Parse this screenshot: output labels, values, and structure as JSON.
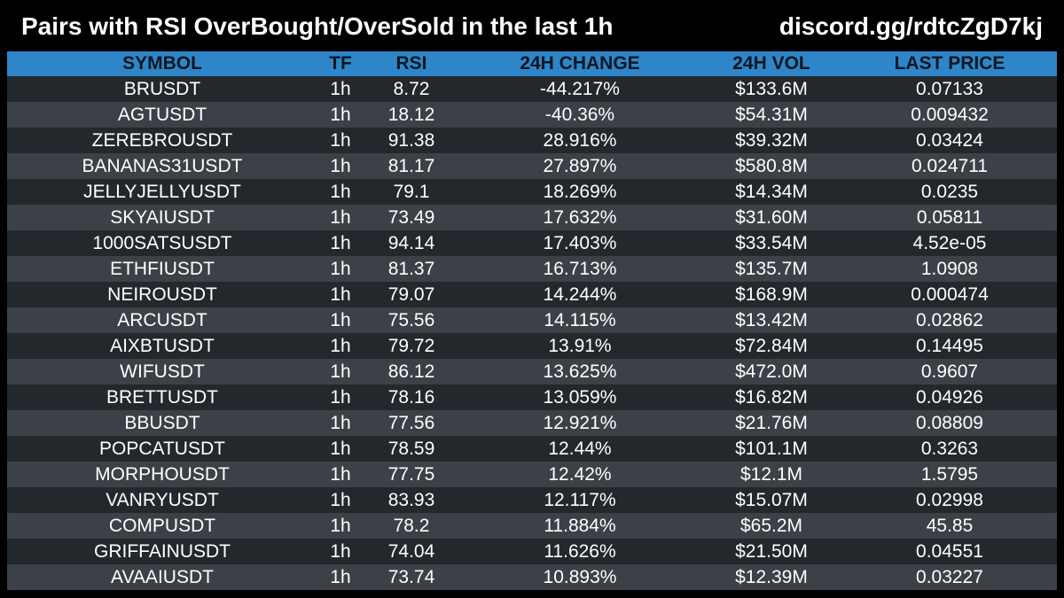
{
  "header": {
    "title": "Pairs with RSI OverBought/OverSold in the last 1h",
    "link": "discord.gg/rdtcZgD7kj"
  },
  "table": {
    "columns": [
      "SYMBOL",
      "TF",
      "RSI",
      "24H CHANGE",
      "24H VOL",
      "LAST PRICE"
    ],
    "rows": [
      [
        "BRUSDT",
        "1h",
        "8.72",
        "-44.217%",
        "$133.6M",
        "0.07133"
      ],
      [
        "AGTUSDT",
        "1h",
        "18.12",
        "-40.36%",
        "$54.31M",
        "0.009432"
      ],
      [
        "ZEREBROUSDT",
        "1h",
        "91.38",
        "28.916%",
        "$39.32M",
        "0.03424"
      ],
      [
        "BANANAS31USDT",
        "1h",
        "81.17",
        "27.897%",
        "$580.8M",
        "0.024711"
      ],
      [
        "JELLYJELLYUSDT",
        "1h",
        "79.1",
        "18.269%",
        "$14.34M",
        "0.0235"
      ],
      [
        "SKYAIUSDT",
        "1h",
        "73.49",
        "17.632%",
        "$31.60M",
        "0.05811"
      ],
      [
        "1000SATSUSDT",
        "1h",
        "94.14",
        "17.403%",
        "$33.54M",
        "4.52e-05"
      ],
      [
        "ETHFIUSDT",
        "1h",
        "81.37",
        "16.713%",
        "$135.7M",
        "1.0908"
      ],
      [
        "NEIROUSDT",
        "1h",
        "79.07",
        "14.244%",
        "$168.9M",
        "0.000474"
      ],
      [
        "ARCUSDT",
        "1h",
        "75.56",
        "14.115%",
        "$13.42M",
        "0.02862"
      ],
      [
        "AIXBTUSDT",
        "1h",
        "79.72",
        "13.91%",
        "$72.84M",
        "0.14495"
      ],
      [
        "WIFUSDT",
        "1h",
        "86.12",
        "13.625%",
        "$472.0M",
        "0.9607"
      ],
      [
        "BRETTUSDT",
        "1h",
        "78.16",
        "13.059%",
        "$16.82M",
        "0.04926"
      ],
      [
        "BBUSDT",
        "1h",
        "77.56",
        "12.921%",
        "$21.76M",
        "0.08809"
      ],
      [
        "POPCATUSDT",
        "1h",
        "78.59",
        "12.44%",
        "$101.1M",
        "0.3263"
      ],
      [
        "MORPHOUSDT",
        "1h",
        "77.75",
        "12.42%",
        "$12.1M",
        "1.5795"
      ],
      [
        "VANRYUSDT",
        "1h",
        "83.93",
        "12.117%",
        "$15.07M",
        "0.02998"
      ],
      [
        "COMPUSDT",
        "1h",
        "78.2",
        "11.884%",
        "$65.2M",
        "45.85"
      ],
      [
        "GRIFFAINUSDT",
        "1h",
        "74.04",
        "11.626%",
        "$21.50M",
        "0.04551"
      ],
      [
        "AVAAIUSDT",
        "1h",
        "73.74",
        "10.893%",
        "$12.39M",
        "0.03227"
      ]
    ]
  },
  "colors": {
    "background": "#000000",
    "header_row": "#2e86c9",
    "header_text": "#0c1620",
    "row_dark": "#23282d",
    "row_light": "#3b4147",
    "cell_text": "#ffffff"
  }
}
